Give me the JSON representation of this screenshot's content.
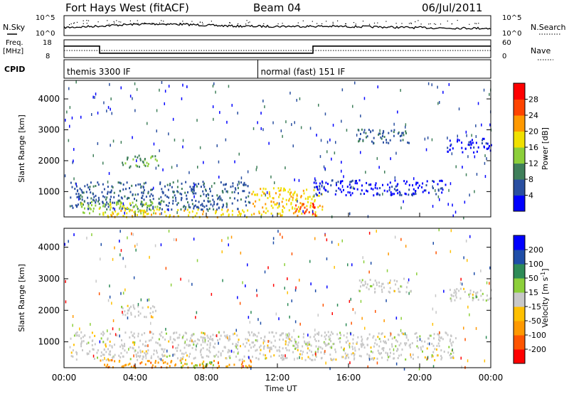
{
  "header": {
    "station": "Fort Hays West (fitACF)",
    "beam": "Beam 04",
    "date": "06/Jul/2011"
  },
  "left_labels": {
    "nsky": "N.Sky",
    "freq_line1": "Freq.",
    "freq_line2": "[MHz]",
    "cpid": "CPID"
  },
  "right_labels": {
    "nsearch": "N.Search",
    "nave": "Nave"
  },
  "chart_data": [
    {
      "type": "line",
      "name": "noise",
      "y_ticks": [
        "10^5",
        "10^0"
      ],
      "y_ticks_right": [
        "10^5",
        "10^0"
      ],
      "series": [
        {
          "name": "N.Sky",
          "level": "approx 10^1 to 10^3, noisy"
        },
        {
          "name": "N.Search",
          "style": "dotted"
        }
      ]
    },
    {
      "type": "line",
      "name": "frequency",
      "y_ticks": [
        "18",
        "8"
      ],
      "y_ticks_right": [
        "60",
        "0"
      ],
      "series": [
        {
          "name": "Freq.",
          "x_hours": [
            0,
            2,
            2,
            14,
            14,
            24
          ],
          "y_mhz": [
            14.5,
            14.5,
            10.5,
            10.5,
            14.5,
            14.5
          ]
        },
        {
          "name": "Nave",
          "style": "dotted",
          "y": 12
        }
      ]
    },
    {
      "type": "table",
      "name": "cpid",
      "segments": [
        {
          "label": "themis 3300 IF",
          "start_hour": 0,
          "end_hour": 10.9
        },
        {
          "label": "normal (fast) 151 IF",
          "start_hour": 10.9,
          "end_hour": 24
        }
      ]
    },
    {
      "type": "heatmap",
      "name": "power",
      "ylabel": "Slant Range [km]",
      "colorbar_label": "Power [dB]",
      "colorbar_ticks": [
        "28",
        "24",
        "20",
        "16",
        "12",
        "8",
        "4"
      ],
      "colors": [
        "#0000ff",
        "#2a4fa0",
        "#3f7f5a",
        "#8ccf3a",
        "#f0e000",
        "#ff9900",
        "#ff4400",
        "#ff0000"
      ],
      "ylim": [
        180,
        4600
      ],
      "y_ticks": [
        "4000",
        "3000",
        "2000",
        "1000"
      ],
      "regions": [
        {
          "x": [
            0.3,
            10.5
          ],
          "y": [
            450,
            1350
          ],
          "level": 9
        },
        {
          "x": [
            0.8,
            5.5
          ],
          "y": [
            300,
            700
          ],
          "level": 16
        },
        {
          "x": [
            2,
            10.5
          ],
          "y": [
            200,
            450
          ],
          "level": 20
        },
        {
          "x": [
            3.2,
            5.3
          ],
          "y": [
            1800,
            2200
          ],
          "level": 10
        },
        {
          "x": [
            10.5,
            14.5
          ],
          "y": [
            250,
            1150
          ],
          "level": 18
        },
        {
          "x": [
            13,
            14.2
          ],
          "y": [
            250,
            650
          ],
          "level": 26
        },
        {
          "x": [
            14,
            21.5
          ],
          "y": [
            900,
            1400
          ],
          "level": 5
        },
        {
          "x": [
            16.5,
            19.5
          ],
          "y": [
            2600,
            3050
          ],
          "level": 8
        },
        {
          "x": [
            21.5,
            24
          ],
          "y": [
            2300,
            2750
          ],
          "level": 4
        }
      ]
    },
    {
      "type": "heatmap",
      "name": "velocity",
      "ylabel": "Slant Range [km]",
      "colorbar_label": "Velocity [m s^-1]",
      "colorbar_ticks": [
        "200",
        "100",
        "50",
        "15",
        "-15",
        "-50",
        "-100",
        "-200"
      ],
      "colors": [
        "#ff0000",
        "#ff5500",
        "#ff9900",
        "#ffc000",
        "#c8c8c8",
        "#8ccf3a",
        "#2e8b57",
        "#1f4ea8",
        "#0000ff"
      ],
      "ylim": [
        180,
        4600
      ],
      "y_ticks": [
        "4000",
        "3000",
        "2000",
        "1000"
      ],
      "regions": [
        {
          "x": [
            0.3,
            22
          ],
          "y": [
            450,
            1350
          ],
          "level": "15"
        },
        {
          "x": [
            2,
            10.5
          ],
          "y": [
            200,
            450
          ],
          "level": "-50"
        },
        {
          "x": [
            6.5,
            8.5
          ],
          "y": [
            200,
            400
          ],
          "level": "50"
        },
        {
          "x": [
            3.2,
            5.3
          ],
          "y": [
            1800,
            2200
          ],
          "level": "15"
        },
        {
          "x": [
            16.5,
            19.5
          ],
          "y": [
            2600,
            3050
          ],
          "level": "15"
        },
        {
          "x": [
            21.5,
            24
          ],
          "y": [
            2300,
            2750
          ],
          "level": "15"
        }
      ]
    }
  ],
  "x_axis": {
    "ticks": [
      "00:00",
      "04:00",
      "08:00",
      "12:00",
      "16:00",
      "20:00",
      "00:00"
    ],
    "label": "Time UT"
  }
}
